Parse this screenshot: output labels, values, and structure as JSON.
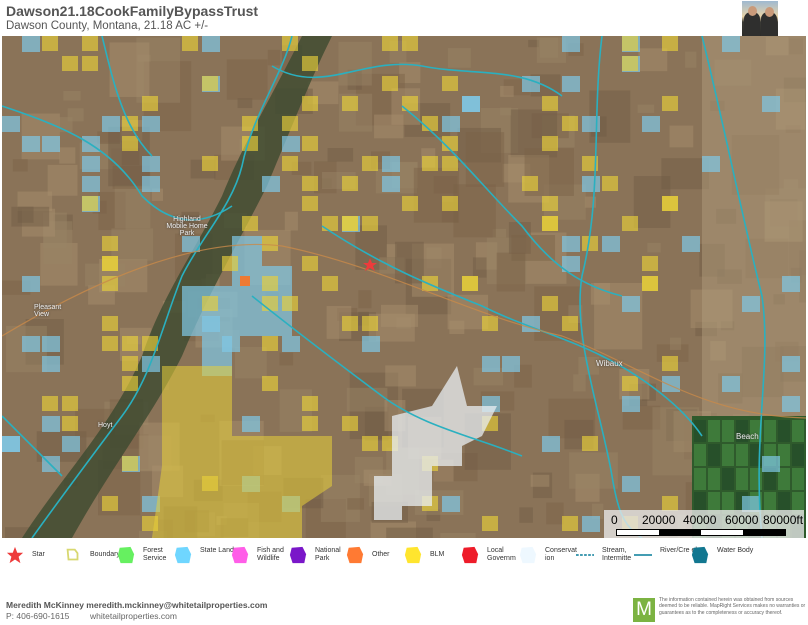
{
  "header": {
    "title": "Dawson21.18CookFamilyBypassTrust",
    "subtitle": "Dawson County, Montana, 21.18 AC +/-",
    "agent_photo": "agent-photo"
  },
  "map": {
    "places": [
      {
        "name": "Highland Mobile Home Park"
      },
      {
        "name": "Wibaux"
      },
      {
        "name": "Beach"
      },
      {
        "name": "Hoyt"
      },
      {
        "name": "Pleasant View"
      }
    ],
    "colors": {
      "state_land": "#7fc8e6",
      "blm": "#e8cf3a",
      "river": "#2ab0c0",
      "conservation": "#e8eef2",
      "terrain": "#8a7358"
    }
  },
  "scale_bar": {
    "labels": [
      "0",
      "20000",
      "40000",
      "60000",
      "80000ft"
    ]
  },
  "legend": {
    "items": [
      {
        "label": "Star",
        "icon": "star-icon",
        "color": "#ee3b3b"
      },
      {
        "label": "Boundary",
        "icon": "boundary-icon",
        "color": "#d8d870"
      },
      {
        "label": "Forest Service",
        "icon": "polygon-icon",
        "color": "#66f060"
      },
      {
        "label": "State Land",
        "icon": "polygon-icon",
        "color": "#6fd6ff"
      },
      {
        "label": "Fish and Wildlife",
        "icon": "polygon-icon",
        "color": "#ff5ee8"
      },
      {
        "label": "National Park",
        "icon": "polygon-icon",
        "color": "#7a17c9"
      },
      {
        "label": "Other",
        "icon": "polygon-icon",
        "color": "#ff7a33"
      },
      {
        "label": "BLM",
        "icon": "polygon-icon",
        "color": "#ffe52e"
      },
      {
        "label": "Local Governm",
        "icon": "polygon-icon",
        "color": "#ee1c2a"
      },
      {
        "label": "Conservat ion",
        "icon": "polygon-icon",
        "color": "#eef8ff"
      },
      {
        "label": "Stream, Intermitte",
        "icon": "dashed-line-icon",
        "color": "#2a8fa8"
      },
      {
        "label": "River/Cre ek",
        "icon": "line-icon",
        "color": "#2a8fa8"
      },
      {
        "label": "Water Body",
        "icon": "polygon-icon",
        "color": "#127790"
      }
    ]
  },
  "footer": {
    "agent": "Meredith McKinney meredith.mckinney@whitetailproperties.com",
    "phone": "P: 406-690-1615",
    "website": "whitetailproperties.com",
    "logo_letter": "M",
    "disclaimer": "The information contained herein was obtained from sources deemed to be reliable. MapRight Services makes no warranties or guarantees as to the completeness or accuracy thereof."
  }
}
